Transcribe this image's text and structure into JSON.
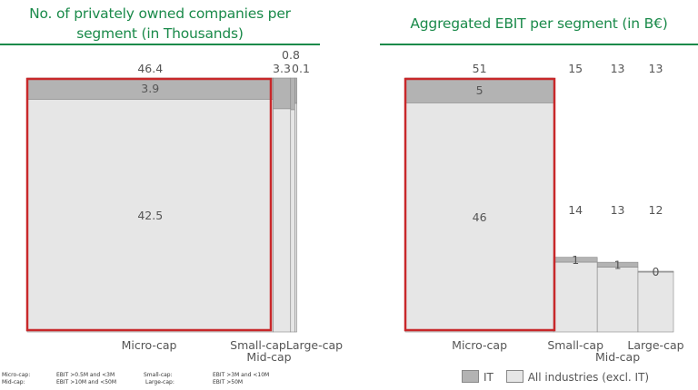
{
  "colors": {
    "title": "#1a8a4a",
    "it": "#b3b3b3",
    "all": "#e6e6e6",
    "highlight": "#c8282a",
    "text": "#555555"
  },
  "chart_data": [
    {
      "type": "marimekko",
      "title": "No. of privately owned companies per segment (in Thousands)",
      "title_line1": "No. of privately owned companies per",
      "title_line2": "segment (in Thousands)",
      "categories": [
        "Micro-cap",
        "Small-cap",
        "Mid-cap",
        "Large-cap"
      ],
      "totals": [
        "46.4",
        "3.3",
        "0.8",
        "0.1"
      ],
      "series": [
        {
          "name": "IT",
          "values": [
            3.9,
            0.4,
            0.1,
            0.01
          ],
          "labels": [
            "3.9",
            "",
            "",
            ""
          ]
        },
        {
          "name": "All industries (excl. IT)",
          "values": [
            42.5,
            2.9,
            0.7,
            0.09
          ],
          "labels": [
            "42.5",
            "",
            "",
            ""
          ]
        }
      ],
      "highlighted": "Micro-cap"
    },
    {
      "type": "marimekko",
      "title": "Aggregated EBIT per segment (in B€)",
      "categories": [
        "Micro-cap",
        "Small-cap",
        "Mid-cap",
        "Large-cap"
      ],
      "totals": [
        "51",
        "15",
        "13",
        "13"
      ],
      "series": [
        {
          "name": "IT",
          "values": [
            5,
            1,
            1,
            0.2
          ],
          "labels": [
            "5",
            "1",
            "1",
            "0"
          ]
        },
        {
          "name": "All industries (excl. IT)",
          "values": [
            46,
            14,
            13,
            12
          ],
          "labels": [
            "46",
            "14",
            "13",
            "12"
          ]
        }
      ],
      "highlighted": "Micro-cap"
    }
  ],
  "footnotes": {
    "micro_label": "Micro-cap:",
    "micro_def": "EBIT >0.5M and <3M",
    "small_label": "Small-cap:",
    "small_def": "EBIT >3M and <10M",
    "mid_label": "Mid-cap:",
    "mid_def": "EBIT >10M and <50M",
    "large_label": "Large-cap:",
    "large_def": "EBIT >50M"
  },
  "legend": {
    "it": "IT",
    "all": "All industries (excl. IT)"
  }
}
